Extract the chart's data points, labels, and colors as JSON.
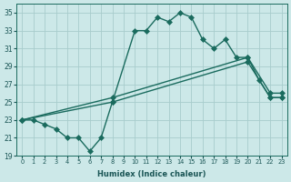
{
  "xlabel": "Humidex (Indice chaleur)",
  "bg_color": "#cce8e8",
  "line_color": "#1a6b5e",
  "grid_color": "#a8cccc",
  "xlim": [
    -0.5,
    23.5
  ],
  "ylim": [
    19,
    36
  ],
  "yticks": [
    19,
    21,
    23,
    25,
    27,
    29,
    31,
    33,
    35
  ],
  "xticks": [
    0,
    1,
    2,
    3,
    4,
    5,
    6,
    7,
    8,
    9,
    10,
    11,
    12,
    13,
    14,
    15,
    16,
    17,
    18,
    19,
    20,
    21,
    22,
    23
  ],
  "series1_x": [
    0,
    1,
    2,
    3,
    4,
    5,
    6,
    7,
    8,
    10,
    11,
    12,
    13,
    14,
    15,
    16,
    17,
    18,
    19,
    20,
    21,
    22,
    23
  ],
  "series1_y": [
    23.0,
    23.0,
    22.5,
    22.0,
    21.0,
    21.0,
    19.5,
    21.0,
    25.0,
    33.0,
    33.0,
    34.5,
    34.0,
    35.0,
    34.5,
    32.0,
    31.0,
    32.0,
    30.0,
    30.0,
    27.5,
    25.5,
    25.5
  ],
  "series2_x": [
    0,
    8,
    20,
    22,
    23
  ],
  "series2_y": [
    23.0,
    25.5,
    30.0,
    26.0,
    26.0
  ],
  "series3_x": [
    0,
    8,
    20,
    22,
    23
  ],
  "series3_y": [
    23.0,
    25.0,
    29.5,
    25.5,
    25.5
  ],
  "markersize": 3,
  "linewidth": 1.0
}
